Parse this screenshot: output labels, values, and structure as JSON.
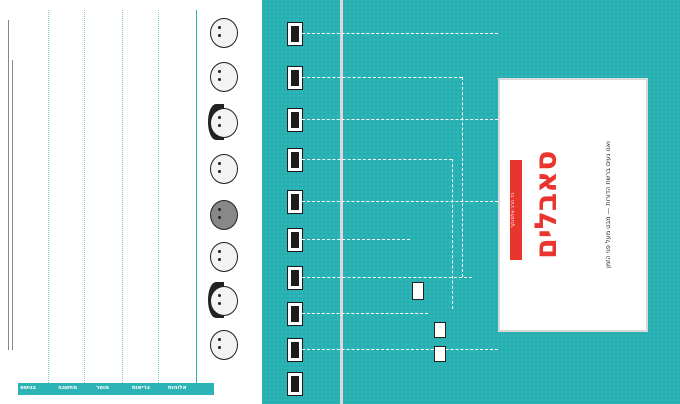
{
  "left": {
    "headers": [
      "מחשבה",
      "מוסר",
      "בריאות",
      "אלוהות"
    ],
    "header_label": "בנושא"
  },
  "right": {
    "title": "סאבלים",
    "subtitle": "ואנו נעים ברשת הדורות — מבט מעל פני הזמן",
    "kicker": "כד הרב אלסנקר"
  }
}
